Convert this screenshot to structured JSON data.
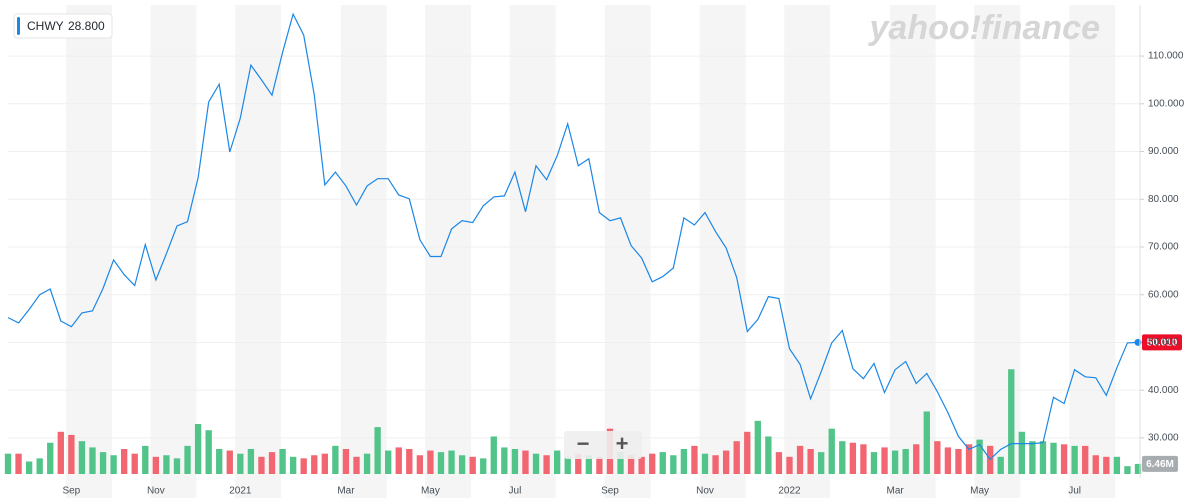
{
  "chart_data": {
    "type": "line",
    "watermark": "yahoo!finance",
    "legend_value": "28.800",
    "controls": [
      "−",
      "+"
    ],
    "categories": [
      null,
      null,
      null,
      null,
      null,
      null,
      "Sep",
      null,
      null,
      null,
      null,
      null,
      null,
      null,
      "Nov",
      null,
      null,
      null,
      null,
      null,
      null,
      null,
      "2021",
      null,
      null,
      null,
      null,
      null,
      null,
      null,
      null,
      null,
      "Mar",
      null,
      null,
      null,
      null,
      null,
      null,
      null,
      "May",
      null,
      null,
      null,
      null,
      null,
      null,
      null,
      "Jul",
      null,
      null,
      null,
      null,
      null,
      null,
      null,
      null,
      "Sep",
      null,
      null,
      null,
      null,
      null,
      null,
      null,
      null,
      "Nov",
      null,
      null,
      null,
      null,
      null,
      null,
      null,
      "2022",
      null,
      null,
      null,
      null,
      null,
      null,
      null,
      null,
      null,
      "Mar",
      null,
      null,
      null,
      null,
      null,
      null,
      null,
      "May",
      null,
      null,
      null,
      null,
      null,
      null,
      null,
      null,
      "Jul",
      null,
      null,
      null,
      null,
      null,
      null
    ],
    "ylim": [
      21.6,
      120.7
    ],
    "yticks": [
      {
        "value": 30,
        "label": "30.000"
      },
      {
        "value": 40,
        "label": "40.000"
      },
      {
        "value": 50,
        "label": "50.000"
      },
      {
        "value": 60,
        "label": "60.000"
      },
      {
        "value": 70,
        "label": "70.000"
      },
      {
        "value": 80,
        "label": "80.000"
      },
      {
        "value": 90,
        "label": "90.000"
      },
      {
        "value": 100,
        "label": "100.000"
      },
      {
        "value": 110,
        "label": "110.000"
      }
    ],
    "y2lim": [
      0,
      300
    ],
    "grid": true,
    "series": [
      {
        "name": "CHWY",
        "color": "#1b87e6",
        "values": [
          55.2,
          54.1,
          56.9,
          60.0,
          61.2,
          54.5,
          53.3,
          56.2,
          56.6,
          61.3,
          67.3,
          64.2,
          61.9,
          70.5,
          63.1,
          68.6,
          74.4,
          75.3,
          84.5,
          100.4,
          104.1,
          89.9,
          97.0,
          108.1,
          105.0,
          101.8,
          110.8,
          118.8,
          114.4,
          101.8,
          83.0,
          85.7,
          82.8,
          78.8,
          82.8,
          84.3,
          84.3,
          80.9,
          80.1,
          71.5,
          68.0,
          68.0,
          73.8,
          75.5,
          75.1,
          78.6,
          80.5,
          80.7,
          85.7,
          77.4,
          87.0,
          84.1,
          89.1,
          95.8,
          87.0,
          88.5,
          77.2,
          75.5,
          76.1,
          70.3,
          67.7,
          62.7,
          63.8,
          65.6,
          76.1,
          74.6,
          77.2,
          73.2,
          69.8,
          63.6,
          52.3,
          54.8,
          59.6,
          59.2,
          48.7,
          45.4,
          38.2,
          43.9,
          49.9,
          52.5,
          44.5,
          42.4,
          45.6,
          39.5,
          44.3,
          46.0,
          41.4,
          43.5,
          39.7,
          35.3,
          30.3,
          27.6,
          28.6,
          25.5,
          27.6,
          28.8,
          28.8,
          28.8,
          29.0,
          38.5,
          37.2,
          44.3,
          42.8,
          42.6,
          38.9,
          44.7,
          49.9,
          50.01
        ],
        "value_labels": [
          null,
          null,
          null,
          null,
          null,
          null,
          null,
          null,
          null,
          null,
          null,
          null,
          null,
          null,
          null,
          null,
          null,
          null,
          null,
          null,
          null,
          null,
          null,
          null,
          null,
          null,
          null,
          null,
          null,
          null,
          null,
          null,
          null,
          null,
          null,
          null,
          null,
          null,
          null,
          null,
          null,
          null,
          null,
          null,
          null,
          null,
          null,
          null,
          null,
          null,
          null,
          null,
          null,
          null,
          null,
          null,
          null,
          null,
          null,
          null,
          null,
          null,
          null,
          null,
          null,
          null,
          null,
          null,
          null,
          null,
          null,
          null,
          null,
          null,
          null,
          null,
          null,
          null,
          null,
          null,
          null,
          null,
          null,
          null,
          null,
          null,
          null,
          null,
          null,
          null,
          null,
          null,
          null,
          null,
          null,
          null,
          null,
          null,
          null,
          null,
          null,
          null,
          null,
          null,
          null,
          null,
          null,
          "50.010"
        ],
        "badge_color": "#eb0f29"
      },
      {
        "type": "bar",
        "axis": "y2",
        "up_color": "#52c48a",
        "down_color": "#f26671",
        "badge_color": "#a7acb0",
        "values": [
          13,
          13,
          8,
          10,
          20,
          27,
          25,
          21,
          17,
          14,
          12,
          16,
          13,
          18,
          11,
          12,
          10,
          18,
          32,
          28,
          16,
          15,
          13,
          16,
          11,
          14,
          16,
          11,
          10,
          12,
          13,
          18,
          16,
          11,
          13,
          30,
          15,
          17,
          16,
          12,
          15,
          14,
          15,
          12,
          11,
          10,
          24,
          17,
          16,
          15,
          13,
          12,
          15,
          11,
          13,
          12,
          11,
          29,
          14,
          12,
          11,
          13,
          14,
          12,
          16,
          18,
          13,
          12,
          15,
          21,
          27,
          34,
          24,
          14,
          11,
          18,
          16,
          14,
          29,
          21,
          20,
          19,
          14,
          17,
          15,
          16,
          19,
          40,
          21,
          17,
          16,
          19,
          22,
          18,
          11,
          67,
          27,
          21,
          21,
          20,
          19,
          18,
          18,
          12,
          11,
          11,
          5,
          6.46
        ],
        "value_labels": [
          null,
          null,
          null,
          null,
          null,
          null,
          null,
          null,
          null,
          null,
          null,
          null,
          null,
          null,
          null,
          null,
          null,
          null,
          null,
          null,
          null,
          null,
          null,
          null,
          null,
          null,
          null,
          null,
          null,
          null,
          null,
          null,
          null,
          null,
          null,
          null,
          null,
          null,
          null,
          null,
          null,
          null,
          null,
          null,
          null,
          null,
          null,
          null,
          null,
          null,
          null,
          null,
          null,
          null,
          null,
          null,
          null,
          null,
          null,
          null,
          null,
          null,
          null,
          null,
          null,
          null,
          null,
          null,
          null,
          null,
          null,
          null,
          null,
          null,
          null,
          null,
          null,
          null,
          null,
          null,
          null,
          null,
          null,
          null,
          null,
          null,
          null,
          null,
          null,
          null,
          null,
          null,
          null,
          null,
          null,
          null,
          null,
          null,
          null,
          null,
          null,
          null,
          null,
          null,
          null,
          null,
          null,
          "6.46M"
        ]
      }
    ]
  }
}
